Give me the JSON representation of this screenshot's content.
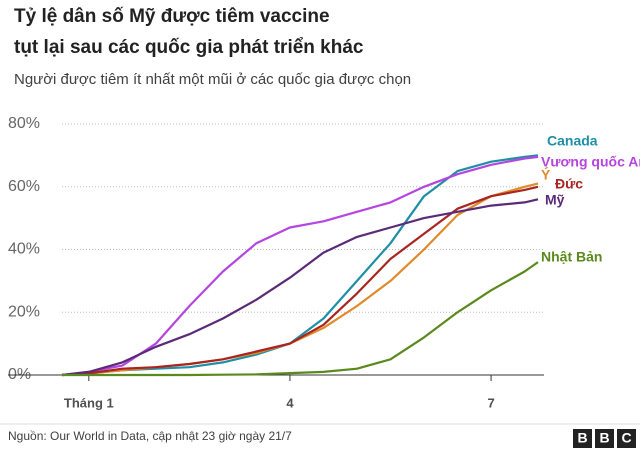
{
  "chart_data": {
    "type": "line",
    "title": [
      "Tỷ lệ dân số Mỹ được tiêm vaccine",
      "tụt lại sau các quốc gia phát triển khác"
    ],
    "subtitle": "Người được tiêm ít nhất một mũi ở các quốc gia được chọn",
    "source": "Nguồn:  Our World in Data, cập nhật 23 giờ ngày 21/7",
    "logo": [
      "B",
      "B",
      "C"
    ],
    "x": [
      0.6,
      1,
      1.5,
      2,
      2.5,
      3,
      3.5,
      4,
      4.5,
      5,
      5.5,
      6,
      6.5,
      7,
      7.5,
      7.7
    ],
    "xlim": [
      0.6,
      7.7
    ],
    "xticks": [
      {
        "value": 1,
        "label": "Tháng 1"
      },
      4,
      7
    ],
    "ylim": [
      0,
      80
    ],
    "yticks": [
      {
        "value": 0,
        "label": "0%"
      },
      {
        "value": 20,
        "label": "20%"
      },
      {
        "value": 40,
        "label": "40%"
      },
      {
        "value": 60,
        "label": "60%"
      },
      {
        "value": 80,
        "label": "80%"
      }
    ],
    "grid": true,
    "series": [
      {
        "name": "Canada",
        "color": "#1f8fa5",
        "values": [
          0,
          0.5,
          1.5,
          2,
          2.5,
          4,
          6.5,
          10,
          18,
          30,
          42,
          57,
          65,
          68,
          69.5,
          70
        ]
      },
      {
        "name": "Vương quốc Anh",
        "color": "#b545e0",
        "values": [
          0,
          1,
          3,
          10,
          22,
          33,
          42,
          47,
          49,
          52,
          55,
          60,
          64,
          67,
          69,
          69.5
        ]
      },
      {
        "name": "Ý",
        "color": "#e08a2a",
        "values": [
          0,
          0.5,
          1.5,
          2.5,
          3.5,
          5,
          7,
          10,
          15,
          22,
          30,
          40,
          51,
          57,
          60,
          61
        ]
      },
      {
        "name": "Đức",
        "color": "#a82521",
        "values": [
          0,
          0.5,
          2,
          2.5,
          3.5,
          5,
          7.5,
          10,
          16,
          26,
          37,
          45,
          53,
          57,
          59,
          60
        ]
      },
      {
        "name": "Mỹ",
        "color": "#5b2a78",
        "values": [
          0,
          1,
          4,
          9,
          13,
          18,
          24,
          31,
          39,
          44,
          47,
          50,
          52,
          54,
          55,
          56
        ]
      },
      {
        "name": "Nhật Bản",
        "color": "#5a8a1d",
        "values": [
          0,
          0,
          0,
          0,
          0,
          0.1,
          0.2,
          0.6,
          1,
          2,
          5,
          12,
          20,
          27,
          33,
          36
        ]
      }
    ]
  }
}
